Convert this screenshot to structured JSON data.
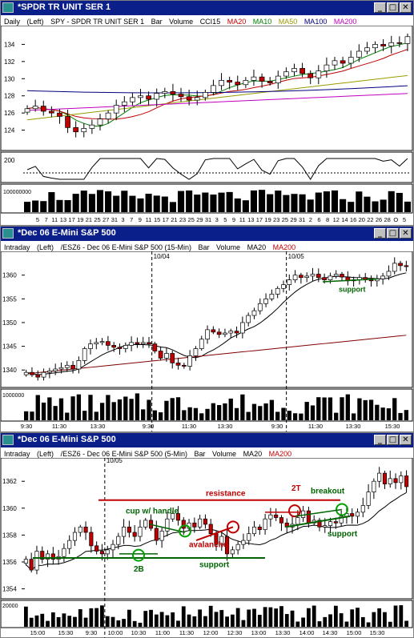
{
  "windows": [
    {
      "title": "*SPDR TR UNIT SER 1",
      "info": [
        {
          "text": "Daily",
          "color": "#000000"
        },
        {
          "text": "(Left)",
          "color": "#000000"
        },
        {
          "text": "SPY - SPDR TR UNIT SER 1",
          "color": "#000000"
        },
        {
          "text": "Bar",
          "color": "#000000"
        },
        {
          "text": "Volume",
          "color": "#000000"
        },
        {
          "text": "CCI15",
          "color": "#000000"
        },
        {
          "text": "MA20",
          "color": "#c00000"
        },
        {
          "text": "MA10",
          "color": "#008000"
        },
        {
          "text": "MA50",
          "color": "#9a9a00"
        },
        {
          "text": "MA100",
          "color": "#000080"
        },
        {
          "text": "MA200",
          "color": "#c000c0"
        }
      ]
    },
    {
      "title": "*Dec 06  E-Mini S&P 500",
      "info": [
        {
          "text": "Intraday",
          "color": "#000000"
        },
        {
          "text": "(Left)",
          "color": "#000000"
        },
        {
          "text": "/ESZ6 - Dec 06  E-Mini S&P 500  (15-Min)",
          "color": "#000000"
        },
        {
          "text": "Bar",
          "color": "#000000"
        },
        {
          "text": "Volume",
          "color": "#000000"
        },
        {
          "text": "MA20",
          "color": "#000000"
        },
        {
          "text": "MA200",
          "color": "#c00000"
        }
      ]
    },
    {
      "title": "*Dec 06  E-Mini S&P 500",
      "info": [
        {
          "text": "Intraday",
          "color": "#000000"
        },
        {
          "text": "(Left)",
          "color": "#000000"
        },
        {
          "text": "/ESZ6 - Dec 06  E-Mini S&P 500  (5-Min)",
          "color": "#000000"
        },
        {
          "text": "Bar",
          "color": "#000000"
        },
        {
          "text": "Volume",
          "color": "#000000"
        },
        {
          "text": "MA20",
          "color": "#000000"
        },
        {
          "text": "MA200",
          "color": "#c00000"
        }
      ]
    }
  ],
  "chart_data": [
    {
      "type": "bar",
      "subtype": "ohlc-candles",
      "price_ylim": [
        122,
        136
      ],
      "price_ticks": [
        124,
        126,
        128,
        130,
        132,
        134
      ],
      "cci_ticks": [
        200
      ],
      "volume_label": "100000000",
      "x_tick_labels": [
        "5",
        "7",
        "11",
        "13",
        "17",
        "19",
        "21",
        "25",
        "27",
        "31",
        "3",
        "7",
        "9",
        "11",
        "15",
        "17",
        "21",
        "23",
        "25",
        "29",
        "31",
        "3",
        "5",
        "9",
        "11",
        "13",
        "17",
        "19",
        "23",
        "25",
        "29",
        "31",
        "2",
        "6",
        "8",
        "12",
        "14",
        "16",
        "20",
        "22",
        "26",
        "28",
        "O",
        "5"
      ],
      "closes": [
        126.5,
        126.8,
        126.2,
        126.0,
        125.6,
        124.3,
        123.8,
        124.2,
        124.6,
        125.3,
        126.0,
        126.9,
        127.3,
        127.8,
        128.0,
        127.6,
        128.3,
        128.5,
        128.2,
        127.9,
        127.5,
        127.8,
        128.4,
        129.2,
        129.8,
        129.6,
        129.3,
        129.8,
        130.2,
        129.7,
        129.5,
        130.3,
        130.8,
        131.2,
        130.6,
        130.1,
        130.9,
        131.6,
        132.1,
        131.8,
        132.5,
        133.2,
        133.6,
        134.0,
        133.8,
        134.2,
        134.1,
        134.9
      ],
      "moving_averages": [
        {
          "name": "MA20",
          "color": "#c00000"
        },
        {
          "name": "MA10",
          "color": "#008000"
        },
        {
          "name": "MA50",
          "color": "#9a9a00"
        },
        {
          "name": "MA100",
          "color": "#000080"
        },
        {
          "name": "MA200",
          "color": "#c000c0"
        }
      ]
    },
    {
      "type": "bar",
      "subtype": "ohlc-candles",
      "price_ylim": [
        1337,
        1364
      ],
      "price_ticks": [
        1340,
        1345,
        1350,
        1355,
        1360
      ],
      "volume_label": "1000000",
      "date_markers": [
        "10/04",
        "10/05"
      ],
      "x_tick_labels": [
        "9:30",
        "11:30",
        "13:30",
        "9:30",
        "11:30",
        "13:30",
        "9:30",
        "11:30",
        "13:30",
        "15:30"
      ],
      "closes": [
        1339.5,
        1339.0,
        1338.5,
        1339.5,
        1339.8,
        1340.2,
        1340.5,
        1341.0,
        1340.2,
        1342.0,
        1344.5,
        1345.5,
        1345.8,
        1346.0,
        1345.2,
        1344.8,
        1344.5,
        1345.2,
        1345.8,
        1345.5,
        1345.8,
        1345.5,
        1344.0,
        1342.5,
        1343.5,
        1341.5,
        1341.0,
        1340.8,
        1343.0,
        1344.5,
        1346.5,
        1348.5,
        1348.0,
        1347.5,
        1347.8,
        1348.2,
        1347.8,
        1350.0,
        1351.5,
        1352.5,
        1354.0,
        1355.0,
        1356.0,
        1357.2,
        1358.0,
        1359.0,
        1360.0,
        1359.5,
        1359.8,
        1360.2,
        1359.5,
        1359.0,
        1359.8,
        1360.2,
        1359.6,
        1358.8,
        1359.0,
        1359.5,
        1359.0,
        1358.8,
        1359.2,
        1359.8,
        1360.8,
        1362.5,
        1362.0,
        1361.8
      ],
      "annotations": [
        {
          "text": "support",
          "color": "#006400"
        }
      ]
    },
    {
      "type": "bar",
      "subtype": "ohlc-candles",
      "price_ylim": [
        1353.5,
        1363.5
      ],
      "price_ticks": [
        1354,
        1356,
        1358,
        1360,
        1362
      ],
      "volume_label": "20000",
      "date_markers": [
        "10/05"
      ],
      "x_tick_labels": [
        "15:00",
        "15:30",
        "9:30",
        "10:00",
        "10:30",
        "11:00",
        "11:30",
        "12:00",
        "12:30",
        "13:00",
        "13:30",
        "14:00",
        "14:30",
        "15:00",
        "15:30"
      ],
      "closes": [
        1356.2,
        1355.4,
        1356.8,
        1356.2,
        1356.6,
        1356.2,
        1356.4,
        1357.0,
        1357.6,
        1358.2,
        1358.6,
        1358.2,
        1357.2,
        1356.8,
        1356.6,
        1356.9,
        1357.3,
        1357.9,
        1358.6,
        1358.2,
        1357.9,
        1358.6,
        1359.1,
        1358.5,
        1357.6,
        1358.3,
        1359.2,
        1359.6,
        1359.1,
        1358.5,
        1358.9,
        1358.6,
        1359.2,
        1358.8,
        1358.1,
        1357.3,
        1357.9,
        1356.6,
        1356.9,
        1357.3,
        1357.6,
        1358.1,
        1358.6,
        1358.4,
        1359.2,
        1359.5,
        1359.3,
        1358.9,
        1358.6,
        1358.8,
        1359.3,
        1359.8,
        1358.9,
        1359.1,
        1358.6,
        1358.7,
        1359.0,
        1358.9,
        1359.4,
        1359.6,
        1359.4,
        1359.7,
        1360.2,
        1361.2,
        1362.0,
        1362.6,
        1361.8,
        1362.2,
        1361.9,
        1362.4,
        1361.6
      ],
      "annotations": [
        {
          "text": "resistance",
          "color": "#c00000"
        },
        {
          "text": "cup w/ handle",
          "color": "#006400"
        },
        {
          "text": "avalanche",
          "color": "#c00000"
        },
        {
          "text": "2T",
          "color": "#c00000"
        },
        {
          "text": "breakout",
          "color": "#006400"
        },
        {
          "text": "support",
          "color": "#006400"
        },
        {
          "text": "support",
          "color": "#006400"
        },
        {
          "text": "2B",
          "color": "#006400"
        }
      ]
    }
  ]
}
